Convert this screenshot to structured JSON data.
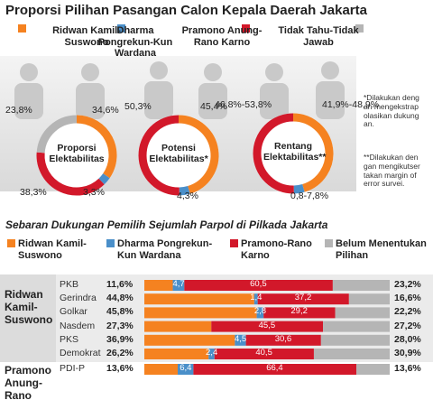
{
  "title": "Proporsi Pilihan Pasangan Calon Kepala Daerah Jakarta",
  "notes": [
    "*Dilakukan dengan mengekstrapolasikan dukungan.",
    "**Dilakukan dengan mengikutsertakan margin of error survei."
  ],
  "chart_data": [
    {
      "type": "donut",
      "title": "Proporsi Elektabilitas",
      "categories": [
        "Ridwan Kamil-Suswono",
        "Dharma Pongrekun-Kun Wardana",
        "Pramono Anung-Rano Karno",
        "Tidak Tahu-Tidak Jawab"
      ],
      "colors": [
        "#f58220",
        "#4a8fc9",
        "#d2182a",
        "#b5b5b5"
      ],
      "values": [
        34.6,
        3.3,
        38.3,
        23.8
      ],
      "value_labels": [
        "34,6%",
        "3,3%",
        "38,3%",
        "23,8%"
      ]
    },
    {
      "type": "donut",
      "title": "Potensi Elektabilitas*",
      "categories": [
        "Ridwan Kamil-Suswono",
        "Dharma Pongrekun-Kun Wardana",
        "Pramono Anung-Rano Karno"
      ],
      "colors": [
        "#f58220",
        "#4a8fc9",
        "#d2182a"
      ],
      "values": [
        45.4,
        4.3,
        50.3
      ],
      "value_labels": [
        "45,4%",
        "4,3%",
        "50,3%"
      ]
    },
    {
      "type": "range-donut",
      "title": "Rentang Elektabilitas**",
      "categories": [
        "Ridwan Kamil-Suswono",
        "Dharma Pongrekun-Kun Wardana",
        "Pramono Anung-Rano Karno"
      ],
      "colors": [
        "#f58220",
        "#4a8fc9",
        "#d2182a"
      ],
      "low": [
        41.9,
        0.8,
        46.8
      ],
      "high": [
        48.9,
        7.8,
        53.8
      ],
      "value_labels": [
        "41,9%-48,9%",
        "0,8-7,8%",
        "46,8%-53,8%"
      ]
    },
    {
      "type": "stacked-bar",
      "title": "Sebaran Dukungan Pemilih Sejumlah Parpol di Pilkada Jakarta",
      "groups": [
        {
          "name": "Ridwan Kamil-Suswono",
          "categories": [
            "PKB",
            "Gerindra",
            "Golkar",
            "Nasdem",
            "PKS",
            "Demokrat"
          ]
        },
        {
          "name": "Pramono Anung-Rano Karno",
          "categories": [
            "PDI-P"
          ]
        }
      ],
      "xlim": [
        0,
        100
      ],
      "series": [
        {
          "name": "Ridwan Kamil-Suswono",
          "color": "#f58220",
          "values": [
            11.6,
            44.8,
            45.8,
            27.3,
            36.9,
            26.2,
            13.6
          ],
          "value_labels": [
            "11,6%",
            "44,8%",
            "45,8%",
            "27,3%",
            "36,9%",
            "26,2%",
            "13,6%"
          ]
        },
        {
          "name": "Dharma Pongrekun-Kun Wardana",
          "color": "#4a8fc9",
          "values": [
            4.7,
            1.4,
            2.8,
            null,
            4.5,
            2.4,
            6.4
          ],
          "value_labels": [
            "4,7",
            "1,4",
            "2,8",
            null,
            "4,5",
            "2,4",
            "6,4"
          ]
        },
        {
          "name": "Pramono-Rano Karno",
          "color": "#d2182a",
          "values": [
            60.5,
            37.2,
            29.2,
            45.5,
            30.6,
            40.5,
            66.4
          ],
          "value_labels": [
            "60,5",
            "37,2",
            "29,2",
            "45,5",
            "30,6",
            "40,5",
            "66,4"
          ]
        },
        {
          "name": "Belum Menentukan Pilihan",
          "color": "#b5b5b5",
          "values": [
            23.2,
            16.6,
            22.2,
            27.2,
            28.0,
            30.9,
            13.6
          ],
          "value_labels": [
            "23,2%",
            "16,6%",
            "22,2%",
            "27,2%",
            "28,0%",
            "30,9%",
            "13,6%"
          ]
        }
      ]
    }
  ]
}
